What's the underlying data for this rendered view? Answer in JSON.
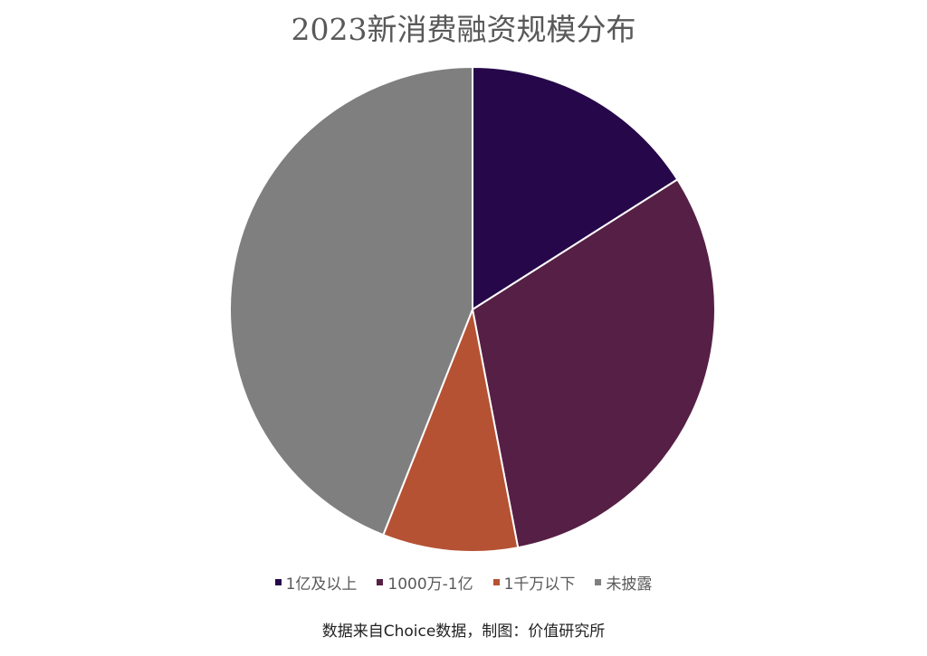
{
  "chart_data": {
    "type": "pie",
    "title": "2023新消费融资规模分布",
    "categories": [
      "1亿及以上",
      "1000万-1亿",
      "1千万以下",
      "未披露"
    ],
    "values": [
      16,
      31,
      9,
      44
    ],
    "unit": "%",
    "colors": [
      "#26084a",
      "#561f45",
      "#b55233",
      "#7f7f7f"
    ],
    "start_angle_deg": 0,
    "direction": "clockwise",
    "legend_position": "bottom",
    "source_note": "数据来自Choice数据，制图：价值研究所"
  },
  "legend": {
    "items": [
      {
        "label": "1亿及以上",
        "color": "#26084a"
      },
      {
        "label": "1000万-1亿",
        "color": "#561f45"
      },
      {
        "label": "1千万以下",
        "color": "#b55233"
      },
      {
        "label": "未披露",
        "color": "#7f7f7f"
      }
    ]
  }
}
